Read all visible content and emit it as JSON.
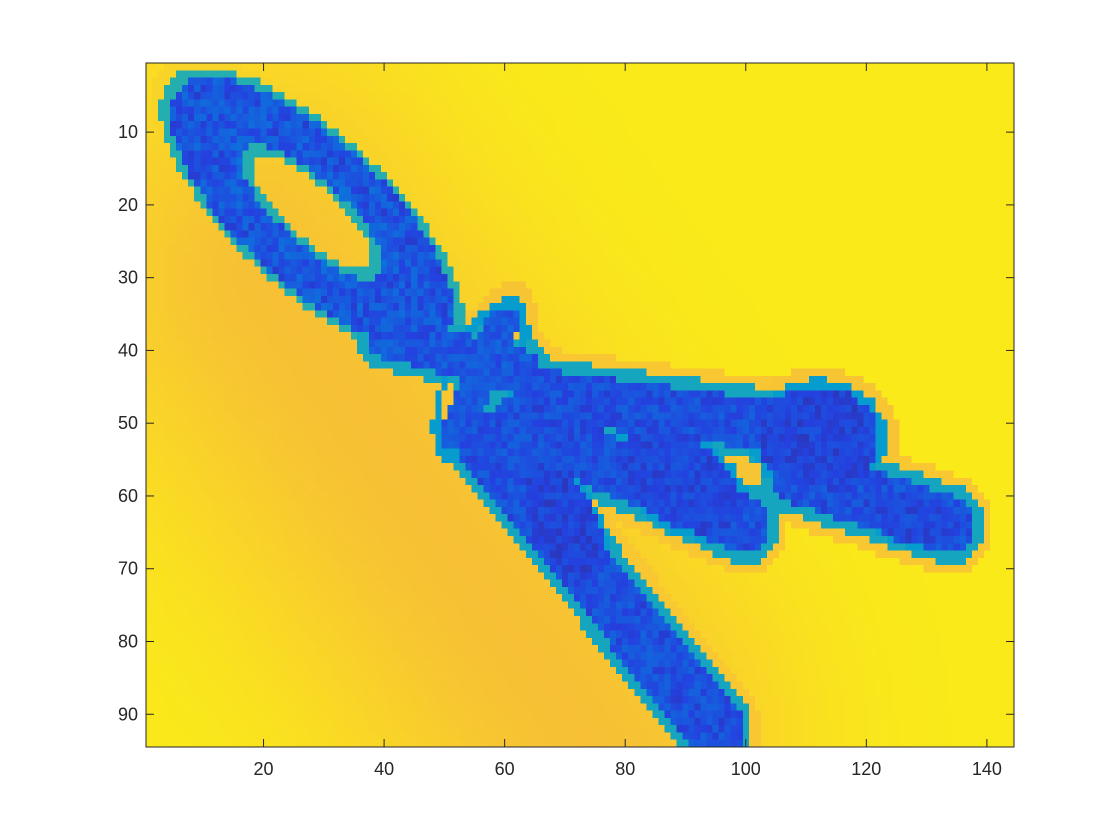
{
  "chart_data": {
    "type": "heatmap",
    "title": "",
    "xlabel": "",
    "ylabel": "",
    "colormap": "parula",
    "xlim": [
      0.5,
      144.5
    ],
    "ylim": [
      0.5,
      94.5
    ],
    "y_direction": "reverse",
    "grid": false,
    "x_ticks": [
      20,
      40,
      60,
      80,
      100,
      120,
      140
    ],
    "x_tick_labels": [
      "20",
      "40",
      "60",
      "80",
      "100",
      "120",
      "140"
    ],
    "y_ticks": [
      10,
      20,
      30,
      40,
      50,
      60,
      70,
      80,
      90
    ],
    "y_tick_labels": [
      "10",
      "20",
      "30",
      "40",
      "50",
      "60",
      "70",
      "80",
      "90"
    ],
    "image_size": {
      "rows": 94,
      "cols": 144
    },
    "value_scale": "0 = dark blue (low), 1 = bright yellow (high)",
    "background_value": 0.96,
    "shadow_band": {
      "p1": [
        20,
        30
      ],
      "p2": [
        75,
        95
      ],
      "width": 30,
      "value": 0.84
    },
    "features": [
      {
        "kind": "loop",
        "center": [
          28,
          21
        ],
        "radii": [
          22,
          8.5
        ],
        "angle_deg": 36,
        "thickness": 3.6,
        "value": 0.08,
        "halo_value": 0.5
      },
      {
        "kind": "loop",
        "center": [
          28,
          21
        ],
        "radii": [
          18.5,
          6
        ],
        "angle_deg": 36,
        "thickness": 2.2,
        "value": 0.1,
        "halo_value": 0.5
      },
      {
        "kind": "stroke",
        "from": [
          40,
          38
        ],
        "to": [
          63,
          43
        ],
        "thickness": 3,
        "value": 0.1
      },
      {
        "kind": "knot",
        "center": [
          56,
          44
        ],
        "radii": [
          11,
          5
        ],
        "angle_deg": -60,
        "value": 0.12
      },
      {
        "kind": "stroke",
        "from": [
          65,
          46
        ],
        "to": [
          110,
          51
        ],
        "thickness": 3.5,
        "value": 0.08
      },
      {
        "kind": "plug",
        "center": [
          112,
          52
        ],
        "radii": [
          10,
          7
        ],
        "angle_deg": 0,
        "value": 0.06
      },
      {
        "kind": "stroke",
        "from": [
          62,
          50
        ],
        "to": [
          100,
          64
        ],
        "thickness": 4,
        "value": 0.08
      },
      {
        "kind": "plug",
        "center": [
          89,
          58
        ],
        "radii": [
          11,
          6
        ],
        "angle_deg": 25,
        "value": 0.07
      },
      {
        "kind": "stroke",
        "from": [
          108,
          57
        ],
        "to": [
          134,
          64
        ],
        "thickness": 4,
        "value": 0.08
      },
      {
        "kind": "plug",
        "center": [
          127,
          63
        ],
        "radii": [
          8,
          3.5
        ],
        "angle_deg": 15,
        "value": 0.07
      },
      {
        "kind": "stroke",
        "from": [
          57,
          53
        ],
        "to": [
          95,
          92
        ],
        "thickness": 4.5,
        "value": 0.08
      },
      {
        "kind": "plug",
        "center": [
          70,
          64
        ],
        "radii": [
          9,
          5
        ],
        "angle_deg": 55,
        "value": 0.06
      }
    ]
  }
}
